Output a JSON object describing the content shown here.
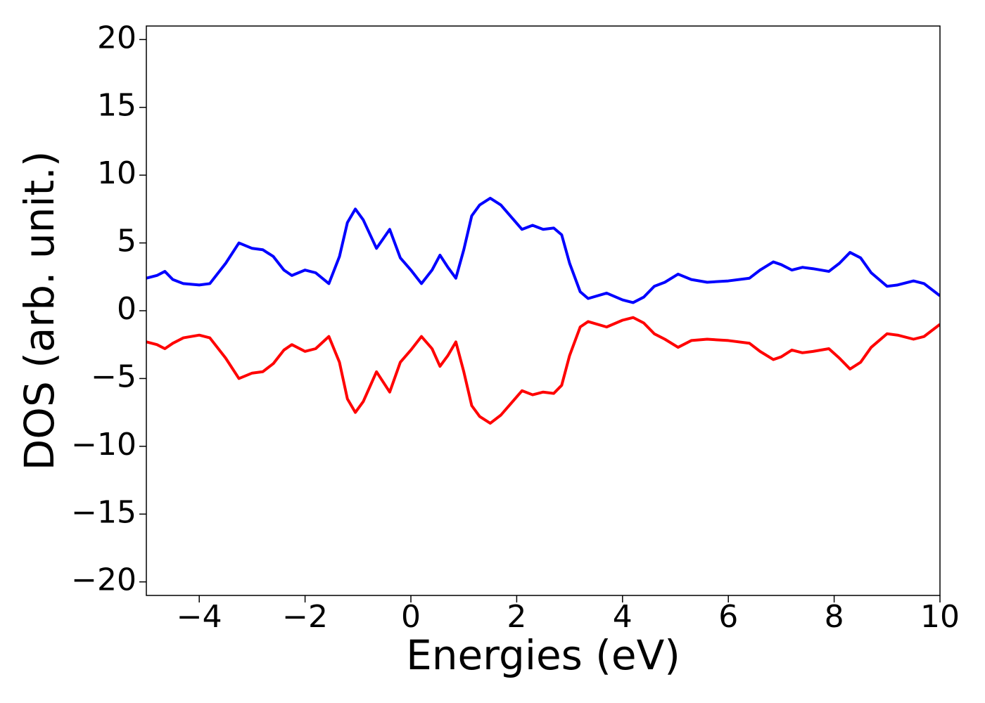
{
  "chart_data": {
    "type": "line",
    "xlabel": "Energies (eV)",
    "ylabel": "DOS (arb. unit.)",
    "xlim": [
      -5,
      10
    ],
    "ylim": [
      -21,
      21
    ],
    "xticks": [
      {
        "value": -4,
        "label": "−4"
      },
      {
        "value": -2,
        "label": "−2"
      },
      0,
      2,
      4,
      6,
      8,
      10
    ],
    "yticks": [
      {
        "value": -20,
        "label": "−20"
      },
      {
        "value": -15,
        "label": "−15"
      },
      {
        "value": -10,
        "label": "−10"
      },
      {
        "value": -5,
        "label": "−5"
      },
      0,
      5,
      10,
      15,
      20
    ],
    "grid": false,
    "x": [
      -5,
      -4.8,
      -4.65,
      -4.5,
      -4.3,
      -4.0,
      -3.8,
      -3.5,
      -3.25,
      -3.0,
      -2.8,
      -2.6,
      -2.4,
      -2.25,
      -2.0,
      -1.8,
      -1.55,
      -1.35,
      -1.2,
      -1.05,
      -0.9,
      -0.65,
      -0.4,
      -0.2,
      0,
      0.2,
      0.4,
      0.55,
      0.7,
      0.85,
      1.0,
      1.15,
      1.3,
      1.5,
      1.7,
      1.9,
      2.1,
      2.3,
      2.5,
      2.7,
      2.85,
      3.0,
      3.2,
      3.35,
      3.7,
      4.0,
      4.2,
      4.4,
      4.6,
      4.8,
      5.05,
      5.3,
      5.6,
      6.0,
      6.4,
      6.6,
      6.85,
      7.0,
      7.2,
      7.4,
      7.6,
      7.9,
      8.1,
      8.3,
      8.5,
      8.7,
      9.0,
      9.2,
      9.5,
      9.7,
      10.0
    ],
    "series": [
      {
        "color": "#0000ff",
        "values": [
          2.4,
          2.6,
          2.9,
          2.3,
          2.0,
          1.9,
          2.0,
          3.5,
          5.0,
          4.6,
          4.5,
          4.0,
          3.0,
          2.6,
          3.0,
          2.8,
          2.0,
          4.0,
          6.5,
          7.5,
          6.7,
          4.6,
          6.0,
          3.9,
          3.0,
          2.0,
          3.0,
          4.1,
          3.2,
          2.4,
          4.5,
          7.0,
          7.8,
          8.3,
          7.8,
          6.9,
          6.0,
          6.3,
          6.0,
          6.1,
          5.6,
          3.5,
          1.4,
          0.9,
          1.3,
          0.8,
          0.6,
          1.0,
          1.8,
          2.1,
          2.7,
          2.3,
          2.1,
          2.2,
          2.4,
          3.0,
          3.6,
          3.4,
          3.0,
          3.2,
          3.1,
          2.9,
          3.5,
          4.3,
          3.9,
          2.8,
          1.8,
          1.9,
          2.2,
          2.0,
          1.1
        ]
      },
      {
        "color": "#ff0000",
        "values": [
          -2.3,
          -2.5,
          -2.8,
          -2.4,
          -2.0,
          -1.8,
          -2.0,
          -3.5,
          -5.0,
          -4.6,
          -4.5,
          -3.9,
          -2.9,
          -2.5,
          -3.0,
          -2.8,
          -1.9,
          -3.8,
          -6.5,
          -7.5,
          -6.7,
          -4.5,
          -6.0,
          -3.8,
          -2.9,
          -1.9,
          -2.8,
          -4.1,
          -3.3,
          -2.3,
          -4.5,
          -7.0,
          -7.8,
          -8.3,
          -7.7,
          -6.8,
          -5.9,
          -6.2,
          -6.0,
          -6.1,
          -5.5,
          -3.3,
          -1.2,
          -0.8,
          -1.2,
          -0.7,
          -0.5,
          -0.9,
          -1.7,
          -2.1,
          -2.7,
          -2.2,
          -2.1,
          -2.2,
          -2.4,
          -3.0,
          -3.6,
          -3.4,
          -2.9,
          -3.1,
          -3.0,
          -2.8,
          -3.5,
          -4.3,
          -3.8,
          -2.7,
          -1.7,
          -1.8,
          -2.1,
          -1.9,
          -1.0
        ]
      }
    ]
  }
}
